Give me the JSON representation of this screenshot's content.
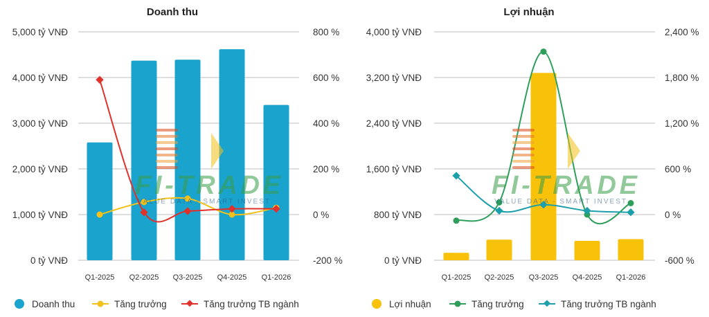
{
  "chart_data": [
    {
      "type": "bar+line",
      "title": "Doanh thu",
      "categories": [
        "Q1-2025",
        "Q2-2025",
        "Q3-2025",
        "Q4-2025",
        "Q1-2026"
      ],
      "y_left": {
        "ticks": [
          "0 tỷ VNĐ",
          "1,000 tỷ VNĐ",
          "2,000 tỷ VNĐ",
          "3,000 tỷ VNĐ",
          "4,000 tỷ VNĐ",
          "5,000 tỷ VNĐ"
        ],
        "range": [
          0,
          5000
        ]
      },
      "y_right": {
        "ticks": [
          "-200 %",
          "0 %",
          "200 %",
          "400 %",
          "600 %",
          "800 %"
        ],
        "range": [
          -200,
          800
        ]
      },
      "bars": {
        "name": "Doanh thu",
        "color": "#1aa3cc",
        "values": [
          2580,
          4370,
          4390,
          4620,
          3400
        ]
      },
      "lines": [
        {
          "name": "Tăng trưởng",
          "color": "#f2c21b",
          "values": [
            0,
            55,
            70,
            0,
            30
          ]
        },
        {
          "name": "Tăng trưởng TB ngành",
          "color": "#e0312b",
          "values": [
            590,
            10,
            15,
            25,
            25
          ]
        }
      ],
      "grid": true,
      "legend": "bottom"
    },
    {
      "type": "bar+line",
      "title": "Lợi nhuận",
      "categories": [
        "Q1-2025",
        "Q2-2025",
        "Q3-2025",
        "Q4-2025",
        "Q1-2026"
      ],
      "y_left": {
        "ticks": [
          "0 tỷ VNĐ",
          "800 tỷ VNĐ",
          "1,600 tỷ VNĐ",
          "2,400 tỷ VNĐ",
          "3,200 tỷ VNĐ",
          "4,000 tỷ VNĐ"
        ],
        "range": [
          0,
          4000
        ]
      },
      "y_right": {
        "ticks": [
          "-600 %",
          "0 %",
          "600 %",
          "1,200 %",
          "1,800 %",
          "2,400 %"
        ],
        "range": [
          -600,
          2400
        ]
      },
      "bars": {
        "name": "Lợi nhuận",
        "color": "#f9c20a",
        "values": [
          130,
          360,
          3280,
          340,
          370
        ]
      },
      "lines": [
        {
          "name": "Tăng trưởng",
          "color": "#2e9e5b",
          "values": [
            -80,
            160,
            2140,
            0,
            150
          ]
        },
        {
          "name": "Tăng trưởng TB ngành",
          "color": "#1b9fab",
          "values": [
            510,
            50,
            130,
            50,
            30
          ]
        }
      ],
      "grid": true,
      "legend": "bottom"
    }
  ],
  "watermark": {
    "text": "FI-TRADE",
    "subtitle": "VALUE DATA - SMART INVEST"
  }
}
